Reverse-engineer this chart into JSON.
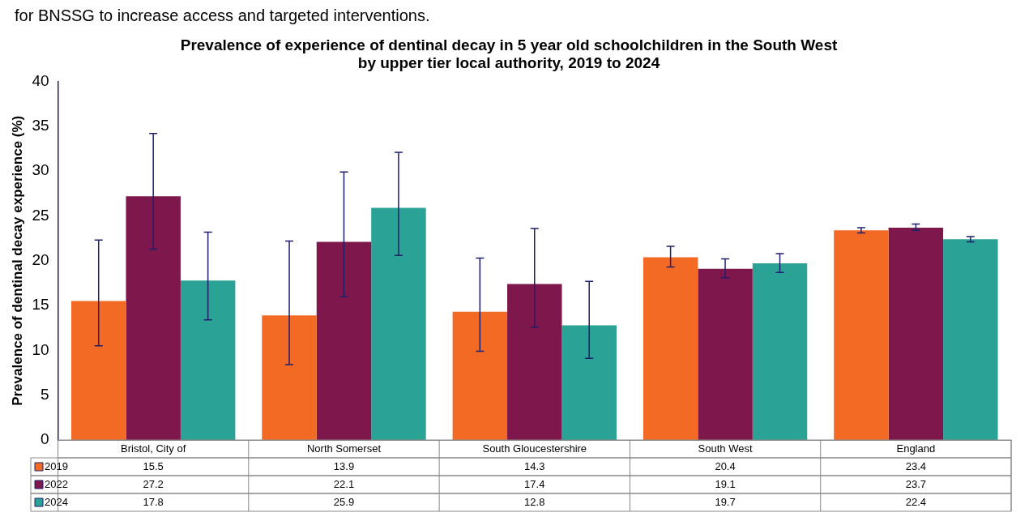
{
  "chart_data": {
    "type": "bar",
    "title": "Prevalence of experience of dentinal decay in 5 year old schoolchildren in the South West\nby upper tier local authority, 2019 to 2024",
    "ylabel": "Prevalence of dentinal decay experience (%)",
    "annotations": [
      "for BNSSG to increase access and targeted interventions."
    ],
    "categories": [
      "Bristol, City of",
      "North Somerset",
      "South Gloucestershire",
      "South West",
      "England"
    ],
    "series": [
      {
        "name": "2019",
        "color": "#f36a25",
        "values": [
          15.5,
          13.9,
          14.3,
          20.4,
          23.4
        ],
        "errors": [
          [
            10.5,
            22.3
          ],
          [
            8.4,
            22.2
          ],
          [
            9.9,
            20.3
          ],
          [
            19.3,
            21.6
          ],
          [
            23.1,
            23.7
          ]
        ]
      },
      {
        "name": "2022",
        "color": "#7e174c",
        "values": [
          27.2,
          22.1,
          17.4,
          19.1,
          23.7
        ],
        "errors": [
          [
            21.3,
            34.2
          ],
          [
            16.0,
            29.9
          ],
          [
            12.6,
            23.6
          ],
          [
            18.1,
            20.2
          ],
          [
            23.4,
            24.1
          ]
        ]
      },
      {
        "name": "2024",
        "color": "#2aa296",
        "values": [
          17.8,
          25.9,
          12.8,
          19.7,
          22.4
        ],
        "errors": [
          [
            13.4,
            23.2
          ],
          [
            20.6,
            32.1
          ],
          [
            9.1,
            17.7
          ],
          [
            18.7,
            20.8
          ],
          [
            22.1,
            22.7
          ]
        ]
      }
    ],
    "ylim": [
      0,
      40
    ],
    "yticks": [
      0,
      5,
      10,
      15,
      20,
      25,
      30,
      35,
      40
    ],
    "grid": false,
    "legend": "bottom",
    "data_labels": true
  }
}
